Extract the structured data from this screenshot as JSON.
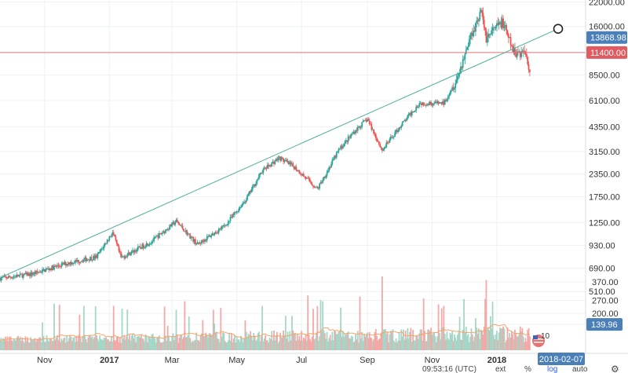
{
  "chart_data": {
    "type": "candlestick",
    "y_scale": "log",
    "ylim": [
      400,
      25000
    ],
    "grid": true,
    "price_ticks": [
      22000,
      16000,
      11400,
      8500,
      6100,
      4350,
      3150,
      2350,
      1750,
      1250,
      930,
      690,
      510
    ],
    "price_tick_labels": [
      "22000.00",
      "16000.00",
      "11400.00",
      "8500.00",
      "6100.00",
      "4350.00",
      "3150.00",
      "2350.00",
      "1750.00",
      "1250.00",
      "930.00",
      "690.00",
      "510.00"
    ],
    "volume_tick_labels": [
      "370.00",
      "270.00",
      "200.00",
      "139.96"
    ],
    "volume_ticks": [
      370,
      270,
      200,
      139.96
    ],
    "x_tick_labels": [
      "Nov",
      "2017",
      "Mar",
      "May",
      "Jul",
      "Sep",
      "Nov",
      "2018"
    ],
    "x_ticks": [
      "2016-11-01",
      "2017-01-01",
      "2017-03-01",
      "2017-05-01",
      "2017-07-01",
      "2017-09-01",
      "2017-11-01",
      "2018-01-01"
    ],
    "x_range": [
      "2016-09-20",
      "2018-02-07"
    ],
    "price_anchors": [
      {
        "date": "2016-09-20",
        "close": 605
      },
      {
        "date": "2016-10-20",
        "close": 640
      },
      {
        "date": "2016-11-20",
        "close": 730
      },
      {
        "date": "2016-12-20",
        "close": 800
      },
      {
        "date": "2017-01-04",
        "close": 1100
      },
      {
        "date": "2017-01-12",
        "close": 790
      },
      {
        "date": "2017-02-10",
        "close": 980
      },
      {
        "date": "2017-03-05",
        "close": 1270
      },
      {
        "date": "2017-03-25",
        "close": 940
      },
      {
        "date": "2017-04-20",
        "close": 1200
      },
      {
        "date": "2017-05-10",
        "close": 1700
      },
      {
        "date": "2017-05-25",
        "close": 2450
      },
      {
        "date": "2017-06-10",
        "close": 2900
      },
      {
        "date": "2017-06-25",
        "close": 2550
      },
      {
        "date": "2017-07-16",
        "close": 1930
      },
      {
        "date": "2017-08-05",
        "close": 3200
      },
      {
        "date": "2017-08-20",
        "close": 4100
      },
      {
        "date": "2017-09-01",
        "close": 4800
      },
      {
        "date": "2017-09-15",
        "close": 3200
      },
      {
        "date": "2017-10-01",
        "close": 4300
      },
      {
        "date": "2017-10-20",
        "close": 5900
      },
      {
        "date": "2017-11-12",
        "close": 5900
      },
      {
        "date": "2017-11-25",
        "close": 8300
      },
      {
        "date": "2017-12-07",
        "close": 14000
      },
      {
        "date": "2017-12-17",
        "close": 19500
      },
      {
        "date": "2017-12-22",
        "close": 13800
      },
      {
        "date": "2018-01-06",
        "close": 17000
      },
      {
        "date": "2018-01-17",
        "close": 11400
      },
      {
        "date": "2018-01-28",
        "close": 11500
      },
      {
        "date": "2018-02-01",
        "close": 9100
      }
    ],
    "trendline": {
      "start": {
        "date": "2016-09-20",
        "price": 610
      },
      "end": {
        "date": "2018-02-07",
        "price": 14300
      }
    },
    "horizontal_line": {
      "price": 11400,
      "label": "11400.00",
      "color": "#e0747a"
    },
    "last_price": {
      "price": 13868.98,
      "label": "13868.98",
      "color": "#4a7fb8"
    },
    "last_volume": {
      "value": 139.96,
      "label": "139.96",
      "color": "#4a7fb8"
    },
    "crosshair_date_label": "2018-02-07",
    "volume_label_badge": "10"
  },
  "status_bar": {
    "time": "09:53:16 (UTC)",
    "ext": "ext",
    "percent": "%",
    "log": "log",
    "auto": "auto"
  },
  "colors": {
    "up": "#26a69a",
    "down": "#ef5350",
    "trend": "#4caf9a",
    "grid": "#eef1f4",
    "volume_ma": "#f4a46a"
  }
}
